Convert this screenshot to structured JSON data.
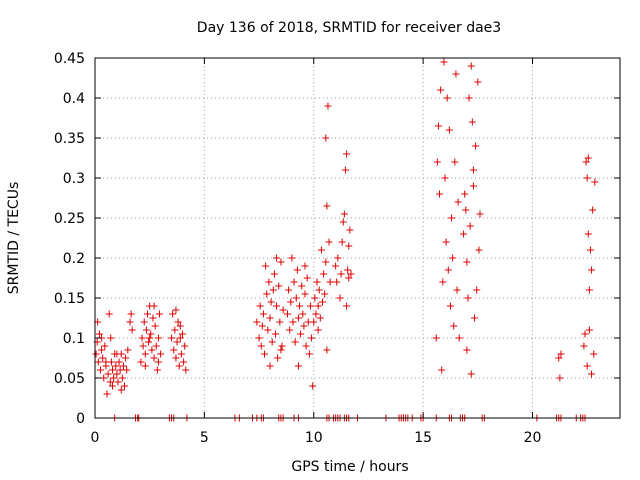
{
  "chart_data": {
    "type": "scatter",
    "title": "Day 136 of 2018, SRMTID for receiver dae3",
    "xlabel": "GPS time / hours",
    "ylabel": "SRMTID / TECUs",
    "xlim": [
      0,
      24
    ],
    "ylim": [
      0,
      0.45
    ],
    "xticks": [
      0,
      5,
      10,
      15,
      20
    ],
    "xtick_labels": [
      "0",
      "5",
      "10",
      "15",
      "20"
    ],
    "yticks": [
      0,
      0.05,
      0.1,
      0.15,
      0.2,
      0.25,
      0.3,
      0.35,
      0.4,
      0.45
    ],
    "ytick_labels": [
      "0",
      "0.05",
      "0.1",
      "0.15",
      "0.2",
      "0.25",
      "0.3",
      "0.35",
      "0.4",
      "0.45"
    ],
    "grid": true,
    "marker": "+",
    "color": "#e00000",
    "series": [
      {
        "name": "SRMTID",
        "points": [
          [
            0.05,
            0.08
          ],
          [
            0.1,
            0.095
          ],
          [
            0.12,
            0.12
          ],
          [
            0.15,
            0.07
          ],
          [
            0.2,
            0.105
          ],
          [
            0.25,
            0.06
          ],
          [
            0.3,
            0.085
          ],
          [
            0.35,
            0.075
          ],
          [
            0.4,
            0.05
          ],
          [
            0.45,
            0.09
          ],
          [
            0.5,
            0.065
          ],
          [
            0.55,
            0.03
          ],
          [
            0.6,
            0.055
          ],
          [
            0.65,
            0.13
          ],
          [
            0.7,
            0.045
          ],
          [
            0.72,
            0.1
          ],
          [
            0.75,
            0.07
          ],
          [
            0.8,
            0.06
          ],
          [
            0.85,
            0.05
          ],
          [
            0.9,
            0.08
          ],
          [
            0.95,
            0.065
          ],
          [
            1.0,
            0.055
          ],
          [
            1.05,
            0.045
          ],
          [
            1.1,
            0.07
          ],
          [
            1.15,
            0.06
          ],
          [
            1.2,
            0.08
          ],
          [
            1.25,
            0.05
          ],
          [
            1.3,
            0.065
          ],
          [
            1.35,
            0.04
          ],
          [
            1.4,
            0.075
          ],
          [
            1.45,
            0.06
          ],
          [
            1.5,
            0.085
          ],
          [
            0.3,
            0.1
          ],
          [
            0.5,
            0.07
          ],
          [
            0.8,
            0.04
          ],
          [
            1.0,
            0.08
          ],
          [
            1.2,
            0.035
          ],
          [
            1.6,
            0.12
          ],
          [
            1.65,
            0.13
          ],
          [
            1.7,
            0.11
          ],
          [
            2.1,
            0.07
          ],
          [
            2.15,
            0.1
          ],
          [
            2.2,
            0.09
          ],
          [
            2.25,
            0.12
          ],
          [
            2.3,
            0.08
          ],
          [
            2.35,
            0.11
          ],
          [
            2.4,
            0.13
          ],
          [
            2.45,
            0.095
          ],
          [
            2.5,
            0.14
          ],
          [
            2.55,
            0.105
          ],
          [
            2.6,
            0.085
          ],
          [
            2.65,
            0.125
          ],
          [
            2.7,
            0.075
          ],
          [
            2.75,
            0.115
          ],
          [
            2.8,
            0.09
          ],
          [
            2.85,
            0.06
          ],
          [
            2.9,
            0.1
          ],
          [
            2.95,
            0.13
          ],
          [
            3.0,
            0.08
          ],
          [
            2.3,
            0.065
          ],
          [
            2.5,
            0.1
          ],
          [
            2.7,
            0.14
          ],
          [
            2.9,
            0.07
          ],
          [
            3.5,
            0.1
          ],
          [
            3.55,
            0.13
          ],
          [
            3.6,
            0.085
          ],
          [
            3.65,
            0.11
          ],
          [
            3.7,
            0.075
          ],
          [
            3.75,
            0.095
          ],
          [
            3.8,
            0.12
          ],
          [
            3.85,
            0.065
          ],
          [
            3.9,
            0.1
          ],
          [
            3.95,
            0.08
          ],
          [
            4.0,
            0.105
          ],
          [
            4.05,
            0.07
          ],
          [
            4.1,
            0.09
          ],
          [
            4.15,
            0.06
          ],
          [
            3.7,
            0.135
          ],
          [
            3.9,
            0.115
          ],
          [
            7.4,
            0.12
          ],
          [
            7.5,
            0.1
          ],
          [
            7.55,
            0.14
          ],
          [
            7.6,
            0.09
          ],
          [
            7.65,
            0.115
          ],
          [
            7.7,
            0.13
          ],
          [
            7.75,
            0.08
          ],
          [
            7.8,
            0.19
          ],
          [
            7.85,
            0.155
          ],
          [
            7.9,
            0.11
          ],
          [
            7.95,
            0.17
          ],
          [
            8.0,
            0.125
          ],
          [
            8.05,
            0.145
          ],
          [
            8.1,
            0.095
          ],
          [
            8.15,
            0.16
          ],
          [
            8.2,
            0.18
          ],
          [
            8.25,
            0.105
          ],
          [
            8.3,
            0.14
          ],
          [
            8.35,
            0.075
          ],
          [
            8.4,
            0.165
          ],
          [
            8.45,
            0.12
          ],
          [
            8.5,
            0.195
          ],
          [
            8.55,
            0.09
          ],
          [
            8.6,
            0.135
          ],
          [
            8.0,
            0.065
          ],
          [
            8.3,
            0.2
          ],
          [
            8.5,
            0.085
          ],
          [
            8.8,
            0.13
          ],
          [
            8.85,
            0.16
          ],
          [
            8.9,
            0.11
          ],
          [
            8.95,
            0.145
          ],
          [
            9.0,
            0.2
          ],
          [
            9.05,
            0.12
          ],
          [
            9.1,
            0.17
          ],
          [
            9.15,
            0.095
          ],
          [
            9.2,
            0.15
          ],
          [
            9.25,
            0.185
          ],
          [
            9.3,
            0.125
          ],
          [
            9.35,
            0.14
          ],
          [
            9.4,
            0.105
          ],
          [
            9.45,
            0.165
          ],
          [
            9.5,
            0.13
          ],
          [
            9.55,
            0.115
          ],
          [
            9.6,
            0.155
          ],
          [
            9.65,
            0.09
          ],
          [
            9.7,
            0.175
          ],
          [
            9.75,
            0.12
          ],
          [
            9.8,
            0.08
          ],
          [
            9.85,
            0.14
          ],
          [
            9.9,
            0.1
          ],
          [
            9.95,
            0.04
          ],
          [
            9.3,
            0.065
          ],
          [
            9.6,
            0.19
          ],
          [
            10.0,
            0.12
          ],
          [
            10.05,
            0.15
          ],
          [
            10.1,
            0.13
          ],
          [
            10.15,
            0.17
          ],
          [
            10.2,
            0.14
          ],
          [
            10.25,
            0.16
          ],
          [
            10.3,
            0.125
          ],
          [
            10.35,
            0.21
          ],
          [
            10.4,
            0.145
          ],
          [
            10.45,
            0.18
          ],
          [
            10.5,
            0.155
          ],
          [
            10.55,
            0.195
          ],
          [
            10.6,
            0.265
          ],
          [
            10.55,
            0.35
          ],
          [
            10.65,
            0.39
          ],
          [
            10.7,
            0.22
          ],
          [
            10.75,
            0.17
          ],
          [
            10.6,
            0.085
          ],
          [
            10.2,
            0.11
          ],
          [
            11.0,
            0.19
          ],
          [
            11.05,
            0.17
          ],
          [
            11.1,
            0.2
          ],
          [
            11.2,
            0.15
          ],
          [
            11.25,
            0.18
          ],
          [
            11.3,
            0.22
          ],
          [
            11.35,
            0.245
          ],
          [
            11.4,
            0.255
          ],
          [
            11.45,
            0.31
          ],
          [
            11.5,
            0.33
          ],
          [
            11.55,
            0.185
          ],
          [
            11.6,
            0.175
          ],
          [
            11.65,
            0.235
          ],
          [
            11.7,
            0.18
          ],
          [
            11.5,
            0.14
          ],
          [
            11.6,
            0.215
          ],
          [
            15.6,
            0.1
          ],
          [
            15.65,
            0.32
          ],
          [
            15.7,
            0.365
          ],
          [
            15.75,
            0.28
          ],
          [
            15.8,
            0.41
          ],
          [
            15.85,
            0.06
          ],
          [
            15.9,
            0.17
          ],
          [
            15.95,
            0.445
          ],
          [
            16.0,
            0.3
          ],
          [
            16.05,
            0.22
          ],
          [
            16.1,
            0.4
          ],
          [
            16.15,
            0.185
          ],
          [
            16.2,
            0.36
          ],
          [
            16.25,
            0.14
          ],
          [
            16.3,
            0.25
          ],
          [
            16.35,
            0.2
          ],
          [
            16.4,
            0.115
          ],
          [
            16.45,
            0.32
          ],
          [
            16.5,
            0.43
          ],
          [
            16.55,
            0.16
          ],
          [
            16.6,
            0.27
          ],
          [
            16.65,
            0.1
          ],
          [
            16.85,
            0.23
          ],
          [
            16.9,
            0.28
          ],
          [
            16.95,
            0.26
          ],
          [
            17.0,
            0.195
          ],
          [
            17.05,
            0.15
          ],
          [
            17.1,
            0.4
          ],
          [
            17.15,
            0.24
          ],
          [
            17.2,
            0.44
          ],
          [
            17.25,
            0.37
          ],
          [
            17.3,
            0.29
          ],
          [
            17.35,
            0.125
          ],
          [
            17.4,
            0.34
          ],
          [
            17.45,
            0.16
          ],
          [
            17.5,
            0.42
          ],
          [
            17.55,
            0.21
          ],
          [
            17.6,
            0.255
          ],
          [
            17.2,
            0.055
          ],
          [
            17.0,
            0.085
          ],
          [
            17.3,
            0.31
          ],
          [
            21.2,
            0.075
          ],
          [
            21.25,
            0.05
          ],
          [
            21.3,
            0.08
          ],
          [
            22.35,
            0.09
          ],
          [
            22.4,
            0.105
          ],
          [
            22.45,
            0.32
          ],
          [
            22.5,
            0.3
          ],
          [
            22.55,
            0.23
          ],
          [
            22.6,
            0.16
          ],
          [
            22.65,
            0.21
          ],
          [
            22.7,
            0.185
          ],
          [
            22.75,
            0.26
          ],
          [
            22.8,
            0.08
          ],
          [
            22.85,
            0.295
          ],
          [
            22.5,
            0.065
          ],
          [
            22.6,
            0.11
          ],
          [
            22.7,
            0.055
          ],
          [
            22.55,
            0.325
          ]
        ],
        "zero_points": [
          0.9,
          1.85,
          1.95,
          2.0,
          3.4,
          3.5,
          3.6,
          4.2,
          6.4,
          6.6,
          7.2,
          7.4,
          7.6,
          7.7,
          8.4,
          8.5,
          8.6,
          9.1,
          9.3,
          10.6,
          10.7,
          10.9,
          11.0,
          11.1,
          11.2,
          11.4,
          11.5,
          11.6,
          12.0,
          13.3,
          13.9,
          14.0,
          14.1,
          14.2,
          14.3,
          14.5,
          14.9,
          15.0,
          15.6,
          16.2,
          16.3,
          16.7,
          16.8,
          16.9,
          17.7,
          17.8,
          20.2,
          21.1,
          21.2,
          21.3,
          22.0,
          22.2,
          22.3,
          22.4
        ]
      }
    ]
  }
}
